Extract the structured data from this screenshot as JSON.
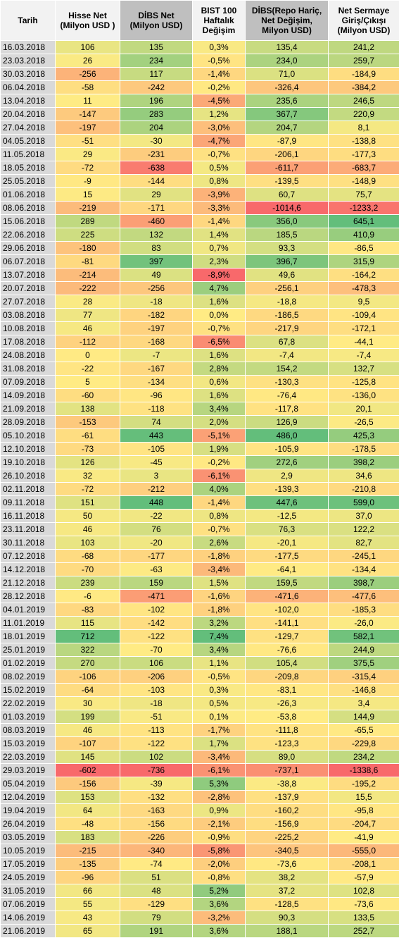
{
  "headers": {
    "date": "Tarih",
    "hisse": "Hisse Net\n(Milyon USD )",
    "dibs": "DİBS Net\n(Milyon USD)",
    "bist": "BIST 100\nHaftalık\nDeğişim",
    "dibs_repo": "DİBS(Repo Hariç,\nNet Değişim,\nMilyon USD)",
    "net": "Net Sermaye\nGiriş/Çıkışı\n(Milyon USD)"
  },
  "rows": [
    [
      "16.03.2018",
      "106",
      "135",
      "0,3%",
      "135,4",
      "241,2"
    ],
    [
      "23.03.2018",
      "26",
      "234",
      "-0,5%",
      "234,0",
      "259,7"
    ],
    [
      "30.03.2018",
      "-256",
      "117",
      "-1,4%",
      "71,0",
      "-184,9"
    ],
    [
      "06.04.2018",
      "-58",
      "-242",
      "-0,2%",
      "-326,4",
      "-384,2"
    ],
    [
      "13.04.2018",
      "11",
      "196",
      "-4,5%",
      "235,6",
      "246,5"
    ],
    [
      "20.04.2018",
      "-147",
      "283",
      "1,2%",
      "367,7",
      "220,9"
    ],
    [
      "27.04.2018",
      "-197",
      "204",
      "-3,0%",
      "204,7",
      "8,1"
    ],
    [
      "04.05.2018",
      "-51",
      "-30",
      "-4,7%",
      "-87,9",
      "-138,8"
    ],
    [
      "11.05.2018",
      "29",
      "-231",
      "-0,7%",
      "-206,1",
      "-177,3"
    ],
    [
      "18.05.2018",
      "-72",
      "-638",
      "0,5%",
      "-611,7",
      "-683,7"
    ],
    [
      "25.05.2018",
      "-9",
      "-144",
      "0,8%",
      "-139,5",
      "-148,9"
    ],
    [
      "01.06.2018",
      "15",
      "29",
      "-3,9%",
      "60,7",
      "75,7"
    ],
    [
      "08.06.2018",
      "-219",
      "-171",
      "-3,3%",
      "-1014,6",
      "-1233,2"
    ],
    [
      "15.06.2018",
      "289",
      "-460",
      "-1,4%",
      "356,0",
      "645,1"
    ],
    [
      "22.06.2018",
      "225",
      "132",
      "1,4%",
      "185,5",
      "410,9"
    ],
    [
      "29.06.2018",
      "-180",
      "83",
      "0,7%",
      "93,3",
      "-86,5"
    ],
    [
      "06.07.2018",
      "-81",
      "397",
      "2,3%",
      "396,7",
      "315,9"
    ],
    [
      "13.07.2018",
      "-214",
      "49",
      "-8,9%",
      "49,6",
      "-164,2"
    ],
    [
      "20.07.2018",
      "-222",
      "-256",
      "4,7%",
      "-256,1",
      "-478,3"
    ],
    [
      "27.07.2018",
      "28",
      "-18",
      "1,6%",
      "-18,8",
      "9,5"
    ],
    [
      "03.08.2018",
      "77",
      "-182",
      "0,0%",
      "-186,5",
      "-109,4"
    ],
    [
      "10.08.2018",
      "46",
      "-197",
      "-0,7%",
      "-217,9",
      "-172,1"
    ],
    [
      "17.08.2018",
      "-112",
      "-168",
      "-6,5%",
      "67,8",
      "-44,1"
    ],
    [
      "24.08.2018",
      "0",
      "-7",
      "1,6%",
      "-7,4",
      "-7,4"
    ],
    [
      "31.08.2018",
      "-22",
      "-167",
      "2,8%",
      "154,2",
      "132,7"
    ],
    [
      "07.09.2018",
      "5",
      "-134",
      "0,6%",
      "-130,3",
      "-125,8"
    ],
    [
      "14.09.2018",
      "-60",
      "-96",
      "1,6%",
      "-76,4",
      "-136,0"
    ],
    [
      "21.09.2018",
      "138",
      "-118",
      "3,4%",
      "-117,8",
      "20,1"
    ],
    [
      "28.09.2018",
      "-153",
      "74",
      "2,0%",
      "126,9",
      "-26,5"
    ],
    [
      "05.10.2018",
      "-61",
      "443",
      "-5,1%",
      "486,0",
      "425,3"
    ],
    [
      "12.10.2018",
      "-73",
      "-105",
      "1,9%",
      "-105,9",
      "-178,5"
    ],
    [
      "19.10.2018",
      "126",
      "-45",
      "-0,2%",
      "272,6",
      "398,2"
    ],
    [
      "26.10.2018",
      "32",
      "3",
      "-6,1%",
      "2,9",
      "34,6"
    ],
    [
      "02.11.2018",
      "-72",
      "-212",
      "4,0%",
      "-139,3",
      "-210,8"
    ],
    [
      "09.11.2018",
      "151",
      "448",
      "-1,4%",
      "447,6",
      "599,0"
    ],
    [
      "16.11.2018",
      "50",
      "-22",
      "0,8%",
      "-12,5",
      "37,0"
    ],
    [
      "23.11.2018",
      "46",
      "76",
      "-0,7%",
      "76,3",
      "122,2"
    ],
    [
      "30.11.2018",
      "103",
      "-20",
      "2,6%",
      "-20,1",
      "82,7"
    ],
    [
      "07.12.2018",
      "-68",
      "-177",
      "-1,8%",
      "-177,5",
      "-245,1"
    ],
    [
      "14.12.2018",
      "-70",
      "-63",
      "-3,4%",
      "-64,1",
      "-134,4"
    ],
    [
      "21.12.2018",
      "239",
      "159",
      "1,5%",
      "159,5",
      "398,7"
    ],
    [
      "28.12.2018",
      "-6",
      "-471",
      "-1,6%",
      "-471,6",
      "-477,6"
    ],
    [
      "04.01.2019",
      "-83",
      "-102",
      "-1,8%",
      "-102,0",
      "-185,3"
    ],
    [
      "11.01.2019",
      "115",
      "-142",
      "3,2%",
      "-141,1",
      "-26,0"
    ],
    [
      "18.01.2019",
      "712",
      "-122",
      "7,4%",
      "-129,7",
      "582,1"
    ],
    [
      "25.01.2019",
      "322",
      "-70",
      "3,4%",
      "-76,6",
      "244,9"
    ],
    [
      "01.02.2019",
      "270",
      "106",
      "1,1%",
      "105,4",
      "375,5"
    ],
    [
      "08.02.2019",
      "-106",
      "-206",
      "-0,5%",
      "-209,8",
      "-315,4"
    ],
    [
      "15.02.2019",
      "-64",
      "-103",
      "0,3%",
      "-83,1",
      "-146,8"
    ],
    [
      "22.02.2019",
      "30",
      "-18",
      "0,5%",
      "-26,3",
      "3,4"
    ],
    [
      "01.03.2019",
      "199",
      "-51",
      "0,1%",
      "-53,8",
      "144,9"
    ],
    [
      "08.03.2019",
      "46",
      "-113",
      "-1,7%",
      "-111,8",
      "-65,5"
    ],
    [
      "15.03.2019",
      "-107",
      "-122",
      "1,7%",
      "-123,3",
      "-229,8"
    ],
    [
      "22.03.2019",
      "145",
      "102",
      "-3,4%",
      "89,0",
      "234,2"
    ],
    [
      "29.03.2019",
      "-602",
      "-736",
      "-6,1%",
      "-737,1",
      "-1338,6"
    ],
    [
      "05.04.2019",
      "-156",
      "-39",
      "5,3%",
      "-38,8",
      "-195,2"
    ],
    [
      "12.04.2019",
      "153",
      "-132",
      "-2,8%",
      "-137,9",
      "15,5"
    ],
    [
      "19.04.2019",
      "64",
      "-163",
      "0,9%",
      "-160,2",
      "-95,8"
    ],
    [
      "26.04.2019",
      "-48",
      "-156",
      "-2,1%",
      "-156,9",
      "-204,7"
    ],
    [
      "03.05.2019",
      "183",
      "-226",
      "-0,9%",
      "-225,2",
      "-41,9"
    ],
    [
      "10.05.2019",
      "-215",
      "-340",
      "-5,8%",
      "-340,5",
      "-555,0"
    ],
    [
      "17.05.2019",
      "-135",
      "-74",
      "-2,0%",
      "-73,6",
      "-208,1"
    ],
    [
      "24.05.2019",
      "-96",
      "51",
      "-0,8%",
      "38,2",
      "-57,9"
    ],
    [
      "31.05.2019",
      "66",
      "48",
      "5,2%",
      "37,2",
      "102,8"
    ],
    [
      "07.06.2019",
      "55",
      "-129",
      "3,6%",
      "-128,5",
      "-73,6"
    ],
    [
      "14.06.2019",
      "43",
      "79",
      "-3,2%",
      "90,3",
      "133,5"
    ],
    [
      "21.06.2019",
      "65",
      "191",
      "3,6%",
      "188,1",
      "252,7"
    ]
  ],
  "colors": {
    "header_light": "#f2f2f2",
    "header_dark": "#bfbfbf",
    "date_cell": "#d9d9d9",
    "scale_low": "#f8696b",
    "scale_mid": "#ffeb84",
    "scale_high": "#63be7b"
  }
}
